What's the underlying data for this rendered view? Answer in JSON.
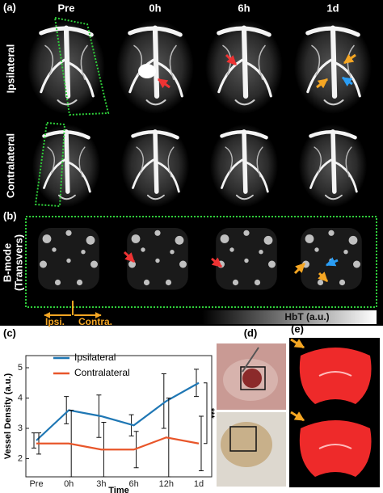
{
  "panel_a": {
    "label": "(a)",
    "columns": [
      "Pre",
      "0h",
      "6h",
      "1d"
    ],
    "rows": [
      "Ipsilateral",
      "Contralateral"
    ]
  },
  "panel_b": {
    "label": "(b)",
    "row": [
      "B-mode",
      "(Transvers)"
    ],
    "ipsi": "Ipsi.",
    "contra": "Contra.",
    "colorbar": "HbT  (a.u.)"
  },
  "panel_c": {
    "label": "(c)"
  },
  "panel_d": {
    "label": "(d)"
  },
  "panel_e": {
    "label": "(e)"
  },
  "chart_data": {
    "type": "line",
    "xlabel": "Time",
    "ylabel": "Vessel Density (a.u.)",
    "categories": [
      "Pre",
      "0h",
      "3h",
      "6h",
      "12h",
      "1d"
    ],
    "ylim": [
      1.4,
      5.4
    ],
    "yticks": [
      2,
      3,
      4,
      5
    ],
    "series": [
      {
        "name": "Ipsilateral",
        "color": "#1f77b4",
        "values": [
          2.6,
          3.6,
          3.4,
          3.1,
          3.9,
          4.5
        ],
        "errors": [
          0.25,
          0.45,
          0.7,
          0.35,
          0.9,
          0.45
        ]
      },
      {
        "name": "Contralateral",
        "color": "#e8562a",
        "values": [
          2.5,
          2.5,
          2.3,
          2.3,
          2.7,
          2.5
        ],
        "errors": [
          0.35,
          1.1,
          0.9,
          0.6,
          1.3,
          0.9
        ]
      }
    ],
    "annotation": "***"
  }
}
